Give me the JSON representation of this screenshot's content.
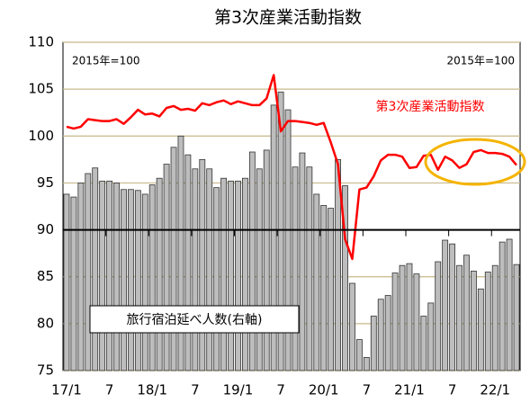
{
  "chart_data": {
    "type": "bar-line",
    "title": "第3次産業活動指数",
    "annotations": [
      "2015年=100",
      "2015年=100"
    ],
    "categories": [
      "17/1",
      null,
      null,
      null,
      null,
      null,
      "7",
      null,
      null,
      null,
      null,
      null,
      "18/1",
      null,
      null,
      null,
      null,
      null,
      "7",
      null,
      null,
      null,
      null,
      null,
      "19/1",
      null,
      null,
      null,
      null,
      null,
      "7",
      null,
      null,
      null,
      null,
      null,
      "20/1",
      null,
      null,
      null,
      null,
      null,
      "7",
      null,
      null,
      null,
      null,
      null,
      "21/1",
      null,
      null,
      null,
      null,
      null,
      "7",
      null,
      null,
      null,
      null,
      null,
      "22/1",
      null,
      null,
      null
    ],
    "series": [
      {
        "name": "旅行宿泊延べ人数(右軸)",
        "kind": "bar",
        "color": "#bdbdbd",
        "values": [
          93.8,
          93.5,
          95,
          96,
          96.6,
          95.2,
          95.2,
          95,
          94.3,
          94.3,
          94.2,
          93.8,
          94.8,
          95.5,
          97,
          98.8,
          100,
          98,
          96.5,
          97.5,
          96.5,
          94.5,
          95.5,
          95.2,
          95.2,
          95.5,
          98.3,
          96.5,
          98.5,
          103.3,
          104.7,
          102.8,
          96.7,
          98.2,
          96.7,
          93.8,
          92.6,
          92.3,
          97.5,
          94.7,
          84.3,
          78.3,
          76.4,
          80.8,
          82.6,
          83,
          85.4,
          86.2,
          86.4,
          85.3,
          80.8,
          82.2,
          86.6,
          88.9,
          88.5,
          86.2,
          87.3,
          85.6,
          83.7,
          85.5,
          86.2,
          88.7,
          89,
          86.3
        ]
      },
      {
        "name": "第3次産業活動指数",
        "kind": "line",
        "color": "#ff0000",
        "values": [
          101,
          100.8,
          101,
          101.8,
          101.7,
          101.6,
          101.6,
          101.8,
          101.3,
          102,
          102.8,
          102.3,
          102.4,
          102.1,
          103,
          103.2,
          102.8,
          102.9,
          102.7,
          103.5,
          103.3,
          103.6,
          103.8,
          103.4,
          103.7,
          103.5,
          103.3,
          103.3,
          104,
          106.5,
          100.5,
          101.6,
          101.6,
          101.5,
          101.4,
          101.2,
          101.4,
          99.3,
          97,
          89,
          86.9,
          94.3,
          94.5,
          95.7,
          97.4,
          98,
          98,
          97.8,
          96.6,
          96.7,
          97.9,
          98,
          96.4,
          97.8,
          97.4,
          96.6,
          97,
          98.3,
          98.5,
          98.2,
          98.2,
          98.1,
          97.8,
          96.9
        ]
      }
    ],
    "ylim": [
      75,
      110
    ],
    "yticks": [
      75,
      80,
      85,
      90,
      95,
      100,
      105,
      110
    ],
    "grid": true
  }
}
